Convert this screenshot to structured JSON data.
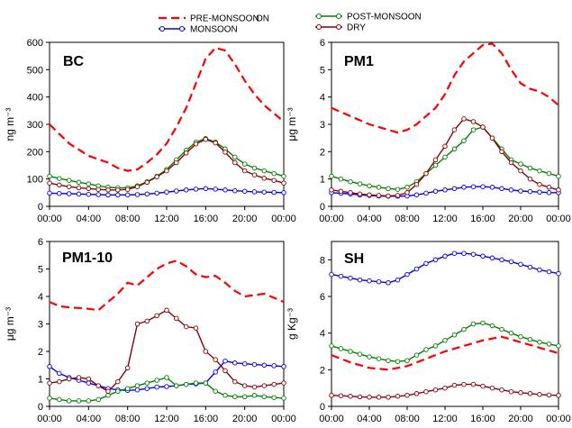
{
  "legend": {
    "left": [
      {
        "label": "PRE-MONSOON",
        "color": "#ff0000",
        "style": "dashed"
      },
      {
        "label": "MONSOON",
        "color": "#0000ff",
        "style": "circle-line"
      }
    ],
    "left_fragment": "ON",
    "right": [
      {
        "label": "POST-MONSOON",
        "color": "#008000",
        "style": "circle-line"
      },
      {
        "label": "DRY",
        "color": "#8b0000",
        "style": "circle-line"
      }
    ]
  },
  "chart_data": [
    {
      "type": "line",
      "title": "BC",
      "ylabel": "ng m⁻³",
      "ylim": [
        0,
        600
      ],
      "yticks": [
        0,
        100,
        200,
        300,
        400,
        500,
        600
      ],
      "xlim": [
        0,
        24
      ],
      "xticks": [
        "00:00",
        "04:00",
        "08:00",
        "12:00",
        "16:00",
        "20:00",
        "00:00"
      ],
      "series": [
        {
          "name": "PRE-MONSOON",
          "color": "#ff0000",
          "style": "dashed",
          "x": [
            0,
            2,
            4,
            6,
            7,
            8,
            9,
            10,
            11,
            12,
            13,
            14,
            15,
            16,
            17,
            18,
            19,
            20,
            21,
            22,
            23,
            24
          ],
          "values": [
            300,
            230,
            185,
            160,
            140,
            130,
            135,
            160,
            190,
            230,
            290,
            360,
            450,
            540,
            580,
            570,
            520,
            460,
            410,
            370,
            340,
            310
          ]
        },
        {
          "name": "MONSOON",
          "color": "#0000ff",
          "style": "circle-line",
          "x": [
            0,
            1,
            2,
            3,
            4,
            5,
            6,
            7,
            8,
            9,
            10,
            11,
            12,
            13,
            14,
            15,
            16,
            17,
            18,
            19,
            20,
            21,
            22,
            23,
            24
          ],
          "values": [
            48,
            47,
            46,
            45,
            44,
            43,
            42,
            42,
            42,
            43,
            45,
            48,
            52,
            56,
            60,
            63,
            65,
            63,
            60,
            57,
            55,
            53,
            52,
            51,
            50
          ]
        },
        {
          "name": "POST-MONSOON",
          "color": "#008000",
          "style": "circle-line",
          "x": [
            0,
            1,
            2,
            3,
            4,
            5,
            6,
            7,
            8,
            9,
            10,
            11,
            12,
            13,
            14,
            15,
            16,
            17,
            18,
            19,
            20,
            21,
            22,
            23,
            24
          ],
          "values": [
            110,
            102,
            95,
            88,
            82,
            75,
            70,
            68,
            68,
            75,
            90,
            110,
            135,
            170,
            205,
            235,
            248,
            235,
            210,
            180,
            155,
            140,
            130,
            120,
            110
          ]
        },
        {
          "name": "DRY",
          "color": "#8b0000",
          "style": "circle-line",
          "x": [
            0,
            1,
            2,
            3,
            4,
            5,
            6,
            7,
            8,
            9,
            10,
            11,
            12,
            13,
            14,
            15,
            16,
            17,
            18,
            19,
            20,
            21,
            22,
            23,
            24
          ],
          "values": [
            85,
            78,
            72,
            68,
            65,
            62,
            60,
            60,
            62,
            72,
            88,
            108,
            130,
            160,
            195,
            228,
            245,
            232,
            198,
            160,
            130,
            115,
            103,
            95,
            85
          ]
        }
      ]
    },
    {
      "type": "line",
      "title": "PM1",
      "ylabel": "μg m⁻³",
      "ylim": [
        0,
        6
      ],
      "yticks": [
        0,
        1,
        2,
        3,
        4,
        5,
        6
      ],
      "xlim": [
        0,
        24
      ],
      "xticks": [
        "00:00",
        "04:00",
        "08:00",
        "12:00",
        "16:00",
        "20:00",
        "00:00"
      ],
      "series": [
        {
          "name": "PRE-MONSOON",
          "color": "#ff0000",
          "style": "dashed",
          "x": [
            0,
            2,
            4,
            6,
            7,
            8,
            9,
            10,
            11,
            12,
            13,
            14,
            15,
            16,
            17,
            18,
            19,
            20,
            21,
            22,
            23,
            24
          ],
          "values": [
            3.6,
            3.3,
            3.0,
            2.8,
            2.7,
            2.8,
            3.0,
            3.3,
            3.6,
            4.1,
            4.8,
            5.3,
            5.6,
            5.9,
            5.95,
            5.6,
            5.0,
            4.5,
            4.3,
            4.2,
            4.0,
            3.7
          ]
        },
        {
          "name": "MONSOON",
          "color": "#0000ff",
          "style": "circle-line",
          "x": [
            0,
            1,
            2,
            3,
            4,
            5,
            6,
            7,
            8,
            9,
            10,
            11,
            12,
            13,
            14,
            15,
            16,
            17,
            18,
            19,
            20,
            21,
            22,
            23,
            24
          ],
          "values": [
            0.5,
            0.48,
            0.45,
            0.42,
            0.4,
            0.38,
            0.37,
            0.37,
            0.38,
            0.42,
            0.48,
            0.55,
            0.6,
            0.65,
            0.7,
            0.72,
            0.72,
            0.7,
            0.65,
            0.6,
            0.56,
            0.54,
            0.52,
            0.5,
            0.5
          ]
        },
        {
          "name": "POST-MONSOON",
          "color": "#008000",
          "style": "circle-line",
          "x": [
            0,
            1,
            2,
            3,
            4,
            5,
            6,
            7,
            8,
            9,
            10,
            11,
            12,
            13,
            14,
            15,
            16,
            17,
            18,
            19,
            20,
            21,
            22,
            23,
            24
          ],
          "values": [
            1.1,
            1.0,
            0.9,
            0.82,
            0.75,
            0.7,
            0.65,
            0.62,
            0.7,
            0.9,
            1.2,
            1.5,
            1.8,
            2.1,
            2.4,
            2.8,
            2.9,
            2.5,
            2.1,
            1.7,
            1.55,
            1.4,
            1.3,
            1.2,
            1.1
          ]
        },
        {
          "name": "DRY",
          "color": "#8b0000",
          "style": "circle-line",
          "x": [
            0,
            1,
            2,
            3,
            4,
            5,
            6,
            7,
            8,
            9,
            10,
            11,
            12,
            13,
            14,
            15,
            16,
            17,
            18,
            19,
            20,
            21,
            22,
            23,
            24
          ],
          "values": [
            0.6,
            0.55,
            0.5,
            0.45,
            0.42,
            0.4,
            0.38,
            0.4,
            0.5,
            0.8,
            1.2,
            1.7,
            2.2,
            2.8,
            3.2,
            3.1,
            2.9,
            2.5,
            2.0,
            1.6,
            1.3,
            1.0,
            0.8,
            0.7,
            0.6
          ]
        }
      ]
    },
    {
      "type": "line",
      "title": "PM1-10",
      "ylabel": "μg m⁻³",
      "ylim": [
        0,
        6
      ],
      "yticks": [
        0,
        1,
        2,
        3,
        4,
        5,
        6
      ],
      "xlim": [
        0,
        24
      ],
      "xticks": [
        "00:00",
        "04:00",
        "08:00",
        "12:00",
        "16:00",
        "20:00",
        "00:00"
      ],
      "series": [
        {
          "name": "PRE-MONSOON",
          "color": "#ff0000",
          "style": "dashed",
          "x": [
            0,
            1,
            2,
            3,
            4,
            5,
            6,
            7,
            8,
            9,
            10,
            11,
            12,
            13,
            14,
            15,
            16,
            17,
            18,
            19,
            20,
            21,
            22,
            23,
            24
          ],
          "values": [
            3.8,
            3.65,
            3.6,
            3.58,
            3.55,
            3.5,
            3.8,
            4.1,
            4.5,
            4.4,
            4.7,
            5.0,
            5.2,
            5.3,
            5.1,
            4.8,
            4.7,
            4.75,
            4.5,
            4.2,
            4.0,
            4.05,
            4.1,
            3.95,
            3.8
          ]
        },
        {
          "name": "MONSOON",
          "color": "#0000ff",
          "style": "circle-line",
          "x": [
            0,
            1,
            2,
            3,
            4,
            5,
            6,
            7,
            8,
            9,
            10,
            11,
            12,
            13,
            14,
            15,
            16,
            17,
            18,
            19,
            20,
            21,
            22,
            23,
            24
          ],
          "values": [
            1.45,
            1.2,
            1.05,
            0.95,
            0.85,
            0.75,
            0.65,
            0.6,
            0.58,
            0.6,
            0.65,
            0.7,
            0.72,
            0.75,
            0.8,
            0.82,
            0.85,
            1.25,
            1.65,
            1.58,
            1.55,
            1.52,
            1.5,
            1.48,
            1.45
          ]
        },
        {
          "name": "POST-MONSOON",
          "color": "#008000",
          "style": "circle-line",
          "x": [
            0,
            1,
            2,
            3,
            4,
            5,
            6,
            7,
            8,
            9,
            10,
            11,
            12,
            13,
            14,
            15,
            16,
            17,
            18,
            19,
            20,
            21,
            22,
            23,
            24
          ],
          "values": [
            0.3,
            0.25,
            0.2,
            0.2,
            0.2,
            0.25,
            0.4,
            0.55,
            0.65,
            0.75,
            0.85,
            0.95,
            1.05,
            0.75,
            0.8,
            0.85,
            0.85,
            0.55,
            0.4,
            0.35,
            0.35,
            0.4,
            0.35,
            0.32,
            0.3
          ]
        },
        {
          "name": "DRY",
          "color": "#8b0000",
          "style": "circle-line",
          "x": [
            0,
            1,
            2,
            3,
            4,
            5,
            6,
            7,
            8,
            9,
            10,
            11,
            12,
            13,
            14,
            15,
            16,
            17,
            18,
            19,
            20,
            21,
            22,
            23,
            24
          ],
          "values": [
            0.85,
            0.9,
            1.0,
            1.05,
            1.0,
            0.75,
            0.55,
            0.9,
            1.4,
            3.0,
            3.1,
            3.3,
            3.5,
            3.2,
            2.9,
            2.85,
            2.0,
            1.7,
            1.3,
            0.9,
            0.75,
            0.7,
            0.75,
            0.8,
            0.85
          ]
        }
      ]
    },
    {
      "type": "line",
      "title": "SH",
      "ylabel": "g Kg⁻³",
      "ylim": [
        0,
        9
      ],
      "yticks": [
        0,
        2,
        4,
        6,
        8
      ],
      "xlim": [
        0,
        24
      ],
      "xticks": [
        "00:00",
        "04:00",
        "08:00",
        "12:00",
        "16:00",
        "20:00",
        "00:00"
      ],
      "series": [
        {
          "name": "PRE-MONSOON",
          "color": "#ff0000",
          "style": "dashed",
          "x": [
            0,
            2,
            4,
            6,
            8,
            10,
            12,
            14,
            16,
            18,
            20,
            22,
            24
          ],
          "values": [
            2.8,
            2.4,
            2.1,
            2.0,
            2.2,
            2.6,
            3.0,
            3.3,
            3.6,
            3.8,
            3.5,
            3.2,
            2.9
          ]
        },
        {
          "name": "MONSOON",
          "color": "#0000ff",
          "style": "circle-line",
          "x": [
            0,
            1,
            2,
            3,
            4,
            5,
            6,
            7,
            8,
            9,
            10,
            11,
            12,
            13,
            14,
            15,
            16,
            17,
            18,
            19,
            20,
            21,
            22,
            23,
            24
          ],
          "values": [
            7.2,
            7.1,
            7.0,
            6.9,
            6.85,
            6.8,
            6.75,
            6.9,
            7.2,
            7.5,
            7.8,
            8.0,
            8.2,
            8.35,
            8.35,
            8.3,
            8.2,
            8.1,
            8.0,
            7.9,
            7.75,
            7.6,
            7.45,
            7.35,
            7.25
          ]
        },
        {
          "name": "POST-MONSOON",
          "color": "#008000",
          "style": "circle-line",
          "x": [
            0,
            1,
            2,
            3,
            4,
            5,
            6,
            7,
            8,
            9,
            10,
            11,
            12,
            13,
            14,
            15,
            16,
            17,
            18,
            19,
            20,
            21,
            22,
            23,
            24
          ],
          "values": [
            3.3,
            3.15,
            3.0,
            2.85,
            2.7,
            2.6,
            2.5,
            2.45,
            2.5,
            2.8,
            3.1,
            3.3,
            3.6,
            3.9,
            4.2,
            4.5,
            4.55,
            4.4,
            4.2,
            4.0,
            3.8,
            3.65,
            3.5,
            3.4,
            3.3
          ]
        },
        {
          "name": "DRY",
          "color": "#8b0000",
          "style": "circle-line",
          "x": [
            0,
            1,
            2,
            3,
            4,
            5,
            6,
            7,
            8,
            9,
            10,
            11,
            12,
            13,
            14,
            15,
            16,
            17,
            18,
            19,
            20,
            21,
            22,
            23,
            24
          ],
          "values": [
            0.6,
            0.58,
            0.55,
            0.52,
            0.5,
            0.5,
            0.5,
            0.55,
            0.6,
            0.7,
            0.8,
            0.9,
            1.0,
            1.15,
            1.2,
            1.2,
            1.1,
            1.0,
            0.9,
            0.8,
            0.75,
            0.7,
            0.65,
            0.62,
            0.6
          ]
        }
      ]
    }
  ]
}
